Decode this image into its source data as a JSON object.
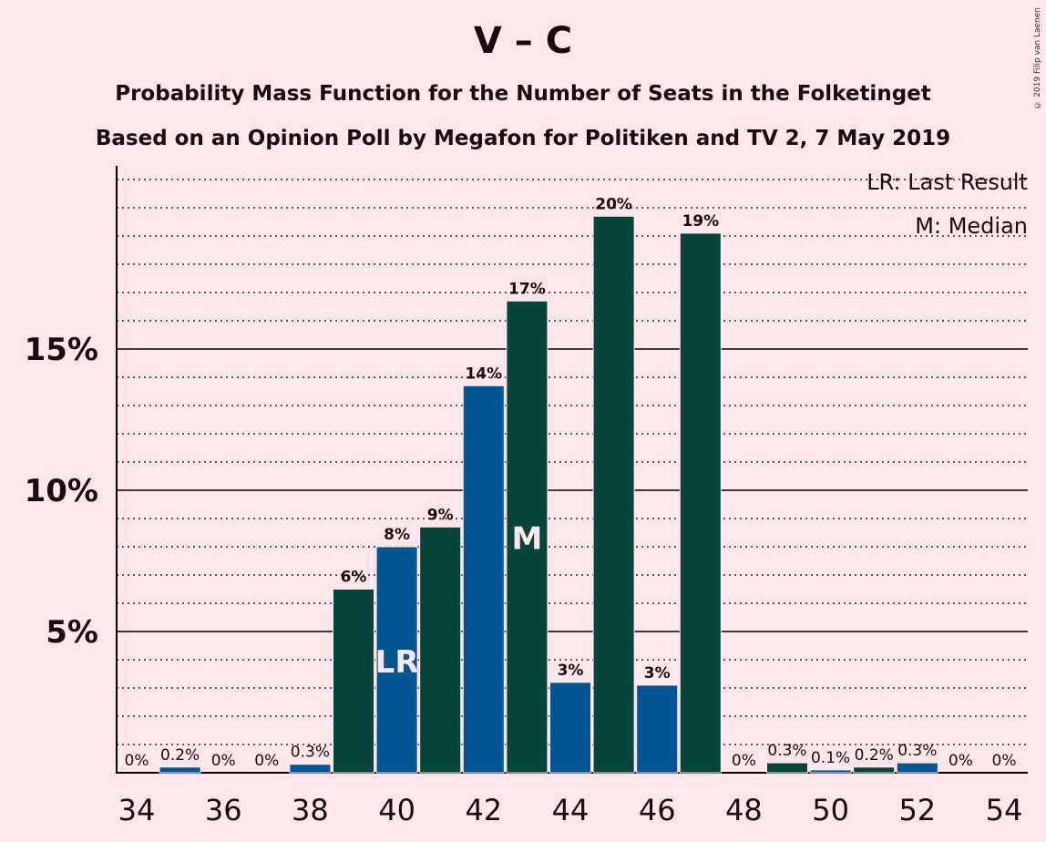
{
  "title": "V – C",
  "subtitle_1": "Probability Mass Function for the Number of Seats in the Folketinget",
  "subtitle_2": "Based on an Opinion Poll by Megafon for Politiken and TV 2, 7 May 2019",
  "copyright": "© 2019 Filip van Laenen",
  "legend": {
    "last_result": "LR: Last Result",
    "median": "M: Median"
  },
  "colors": {
    "background": "#FFE6EA",
    "bar_green": "#04453A",
    "bar_blue": "#005595",
    "text": "#1a0a10"
  },
  "chart_data": {
    "type": "bar",
    "x": [
      34,
      35,
      36,
      37,
      38,
      39,
      40,
      41,
      42,
      43,
      44,
      45,
      46,
      47,
      48,
      49,
      50,
      51,
      52,
      53,
      54
    ],
    "values": [
      0,
      0.2,
      0,
      0,
      0.3,
      6.5,
      8.0,
      8.7,
      13.7,
      16.7,
      3.2,
      19.7,
      3.1,
      19.1,
      0,
      0.35,
      0.1,
      0.2,
      0.35,
      0,
      0
    ],
    "labels": [
      "0%",
      "0.2%",
      "0%",
      "0%",
      "0.3%",
      "6%",
      "8%",
      "9%",
      "14%",
      "17%",
      "3%",
      "20%",
      "3%",
      "19%",
      "0%",
      "0.3%",
      "0.1%",
      "0.2%",
      "0.3%",
      "0%",
      "0%"
    ],
    "bar_colors": [
      "green",
      "blue",
      "green",
      "blue",
      "blue",
      "green",
      "blue",
      "green",
      "blue",
      "green",
      "blue",
      "green",
      "blue",
      "green",
      "blue",
      "green",
      "blue",
      "green",
      "blue",
      "green",
      "blue"
    ],
    "x_ticks": [
      "34",
      "36",
      "38",
      "40",
      "42",
      "44",
      "46",
      "48",
      "50",
      "52",
      "54"
    ],
    "y_ticks": [
      "5%",
      "10%",
      "15%"
    ],
    "y_tick_values": [
      5,
      10,
      15
    ],
    "ylim": [
      0,
      21.5
    ],
    "minor_grid_step": 1,
    "last_result": {
      "x": 40,
      "label": "LR"
    },
    "median": {
      "x": 43,
      "label": "M"
    },
    "xlabel": "",
    "ylabel": ""
  }
}
